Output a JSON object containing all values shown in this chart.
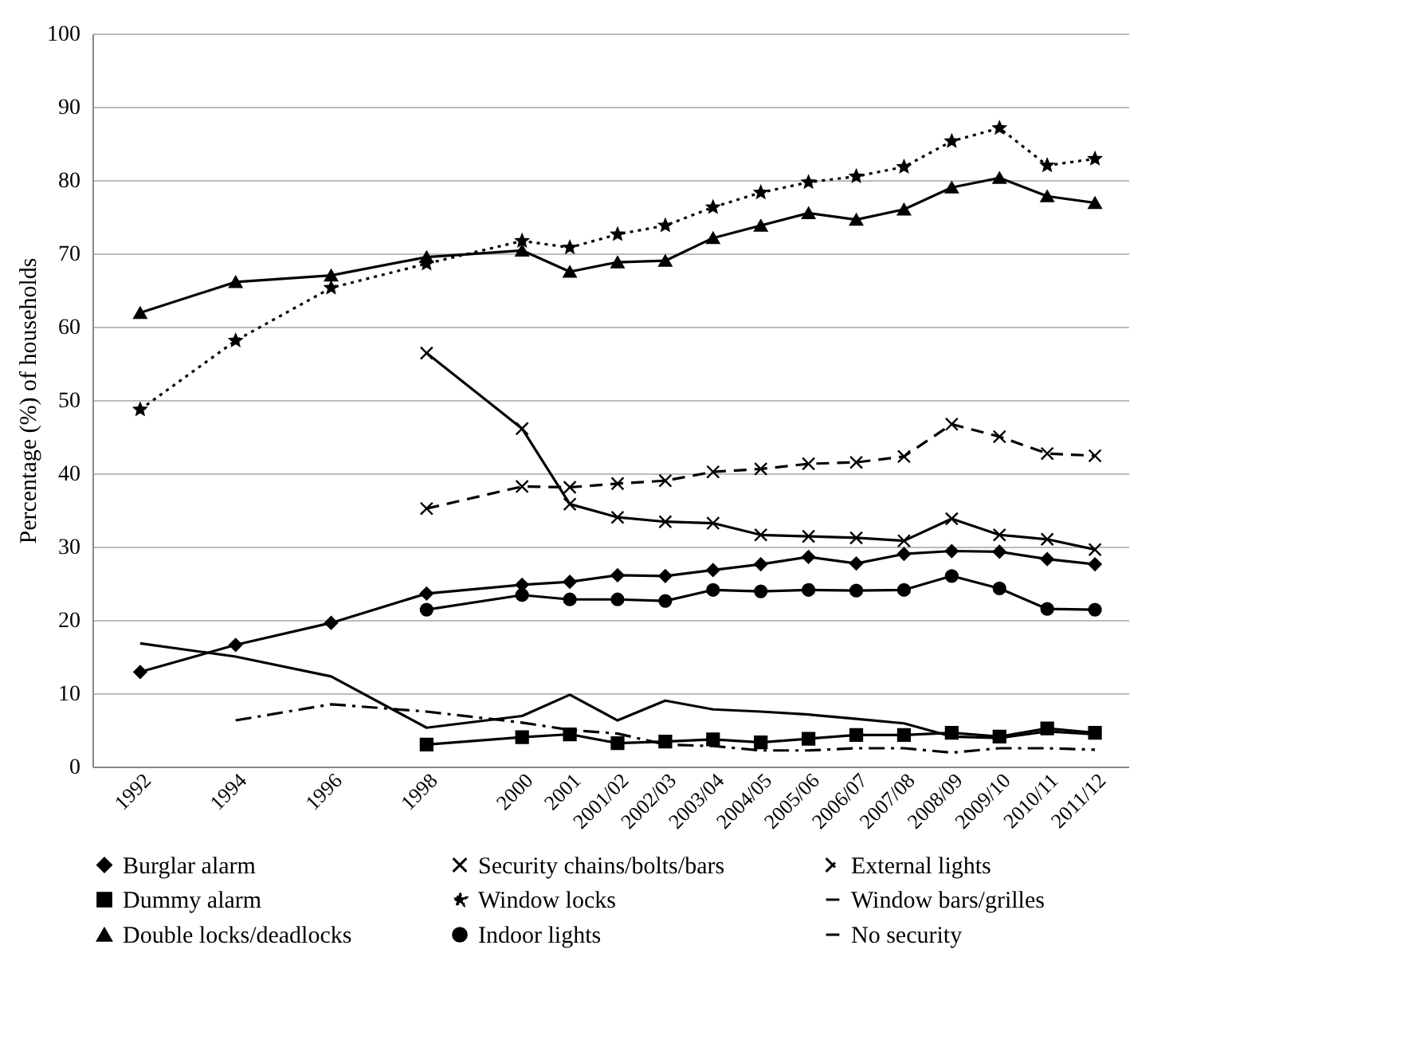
{
  "chart_data": {
    "type": "line",
    "ylabel": "Percentage (%) of households",
    "x": [
      1992,
      1994,
      1996,
      1998,
      2000,
      2001,
      2002,
      2003,
      2004,
      2005,
      2006,
      2007,
      2008,
      2009,
      2010,
      2011,
      2012
    ],
    "xlim": [
      1991,
      2012.7
    ],
    "xticks": [
      1992,
      1994,
      1996,
      1998,
      2000,
      2001,
      {
        "value": 2002,
        "label": "2001/02"
      },
      {
        "value": 2003,
        "label": "2002/03"
      },
      {
        "value": 2004,
        "label": "2003/04"
      },
      {
        "value": 2005,
        "label": "2004/05"
      },
      {
        "value": 2006,
        "label": "2005/06"
      },
      {
        "value": 2007,
        "label": "2006/07"
      },
      {
        "value": 2008,
        "label": "2007/08"
      },
      {
        "value": 2009,
        "label": "2008/09"
      },
      {
        "value": 2010,
        "label": "2009/10"
      },
      {
        "value": 2011,
        "label": "2010/11"
      },
      {
        "value": 2012,
        "label": "2011/12"
      }
    ],
    "ylim": [
      0,
      100
    ],
    "yticks": [
      0,
      10,
      20,
      30,
      40,
      50,
      60,
      70,
      80,
      90,
      100
    ],
    "grid": "y",
    "legend": "bottom",
    "series": [
      {
        "name": "Burglar alarm",
        "color": "#000000",
        "marker": "diamond",
        "line_style": "solid",
        "values": [
          12.9,
          16.6,
          19.6,
          23.6,
          24.8,
          25.2,
          26.1,
          26.0,
          26.8,
          27.6,
          28.6,
          27.7,
          29.0,
          29.4,
          29.3,
          28.3,
          27.6
        ]
      },
      {
        "name": "Security chains/bolts/bars",
        "color": "#000000",
        "marker": "cross",
        "line_style": "solid",
        "values": [
          null,
          null,
          null,
          56.4,
          46.1,
          35.8,
          34.0,
          33.4,
          33.2,
          31.6,
          31.4,
          31.2,
          30.8,
          33.8,
          31.6,
          31.0,
          29.6
        ]
      },
      {
        "name": "External lights",
        "color": "#000000",
        "marker": "cross",
        "line_style": "dashed",
        "values": [
          null,
          null,
          null,
          35.2,
          38.2,
          38.1,
          38.6,
          39.0,
          40.2,
          40.6,
          41.3,
          41.5,
          42.3,
          46.7,
          45.0,
          42.7,
          42.4
        ]
      },
      {
        "name": "Dummy alarm",
        "color": "#000000",
        "marker": "square",
        "line_style": "solid",
        "values": [
          null,
          null,
          null,
          3.0,
          4.0,
          4.4,
          3.2,
          3.4,
          3.7,
          3.3,
          3.8,
          4.3,
          4.3,
          4.6,
          4.1,
          5.2,
          4.6
        ]
      },
      {
        "name": "Window locks",
        "color": "#000000",
        "marker": "star",
        "line_style": "dotted",
        "values": [
          48.7,
          58.1,
          65.3,
          68.6,
          71.7,
          70.8,
          72.6,
          73.8,
          76.3,
          78.3,
          79.7,
          80.5,
          81.8,
          85.3,
          87.1,
          82.0,
          82.9
        ]
      },
      {
        "name": "Window bars/grilles",
        "color": "#000000",
        "marker": "none",
        "line_style": "dashdot",
        "values": [
          null,
          6.3,
          8.5,
          7.5,
          6.0,
          5.0,
          4.5,
          3.0,
          2.8,
          2.2,
          2.2,
          2.5,
          2.5,
          1.9,
          2.5,
          2.5,
          2.3
        ]
      },
      {
        "name": "Double locks/deadlocks",
        "color": "#000000",
        "marker": "triangle",
        "line_style": "solid",
        "values": [
          61.9,
          66.1,
          67.0,
          69.5,
          70.4,
          67.5,
          68.8,
          69.0,
          72.1,
          73.8,
          75.5,
          74.6,
          76.0,
          79.0,
          80.3,
          77.8,
          76.9
        ]
      },
      {
        "name": "Indoor lights",
        "color": "#000000",
        "marker": "circle",
        "line_style": "solid",
        "values": [
          null,
          null,
          null,
          21.4,
          23.4,
          22.8,
          22.8,
          22.6,
          24.1,
          23.9,
          24.1,
          24.0,
          24.1,
          26.0,
          24.3,
          21.5,
          21.4
        ]
      },
      {
        "name": "No security",
        "color": "#000000",
        "marker": "none",
        "line_style": "solid",
        "values": [
          16.8,
          15.0,
          12.3,
          5.3,
          6.9,
          9.8,
          6.3,
          9.0,
          7.8,
          7.5,
          7.1,
          6.5,
          5.9,
          4.1,
          3.9,
          4.8,
          4.4
        ]
      }
    ]
  }
}
